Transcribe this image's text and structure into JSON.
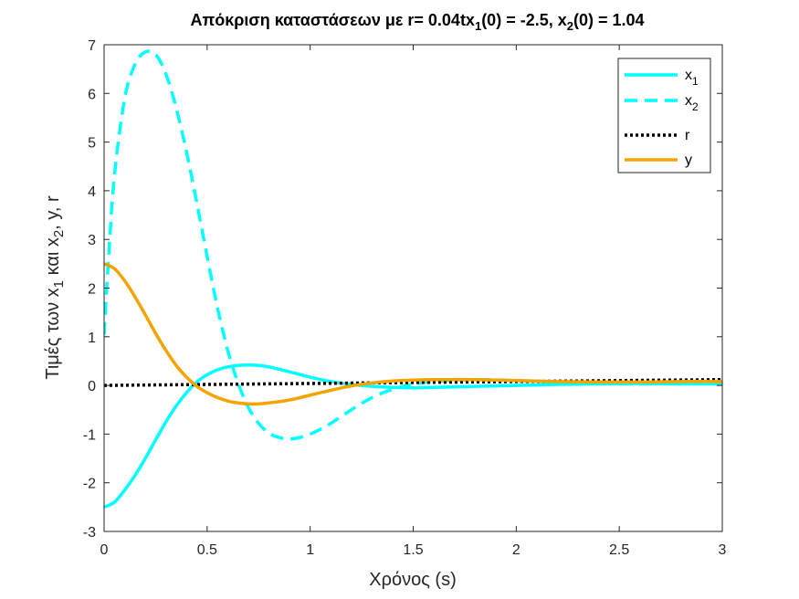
{
  "chart_data": {
    "type": "line",
    "title": {
      "main": "Απόκριση καταστάσεων με r= 0.04tx",
      "sub1": "1",
      "mid": "(0) = -2.5, x",
      "sub2": "2",
      "end": "(0) = 1.04"
    },
    "xlabel": "Χρόνος (s)",
    "ylabel": {
      "a": "Τιμές των x",
      "sub1": "1",
      "b": " και x",
      "sub2": "2",
      "c": ", y, r"
    },
    "xlim": [
      0,
      3
    ],
    "ylim": [
      -3,
      7
    ],
    "x_ticks": [
      0,
      0.5,
      1,
      1.5,
      2,
      2.5,
      3
    ],
    "x_tick_labels": [
      "0",
      "0.5",
      "1",
      "1.5",
      "2",
      "2.5",
      "3"
    ],
    "y_ticks": [
      -3,
      -2,
      -1,
      0,
      1,
      2,
      3,
      4,
      5,
      6,
      7
    ],
    "y_tick_labels": [
      "-3",
      "-2",
      "-1",
      "0",
      "1",
      "2",
      "3",
      "4",
      "5",
      "6",
      "7"
    ],
    "grid": false,
    "legend_position": "top-right",
    "series": [
      {
        "name": "x",
        "name_sub": "1",
        "color": "#00FFFF",
        "style": "solid",
        "x": [
          0,
          0.05,
          0.1,
          0.15,
          0.2,
          0.25,
          0.3,
          0.35,
          0.4,
          0.45,
          0.5,
          0.55,
          0.6,
          0.65,
          0.7,
          0.75,
          0.8,
          0.9,
          1.0,
          1.1,
          1.2,
          1.3,
          1.4,
          1.5,
          1.6,
          1.8,
          2.0,
          2.2,
          2.4,
          2.6,
          2.8,
          3.0
        ],
        "y": [
          -2.5,
          -2.4,
          -2.15,
          -1.85,
          -1.5,
          -1.12,
          -0.75,
          -0.42,
          -0.15,
          0.07,
          0.22,
          0.32,
          0.38,
          0.41,
          0.42,
          0.41,
          0.38,
          0.28,
          0.17,
          0.08,
          0.02,
          -0.02,
          -0.04,
          -0.05,
          -0.04,
          -0.02,
          0.0,
          0.02,
          0.03,
          0.04,
          0.03,
          0.03
        ]
      },
      {
        "name": "x",
        "name_sub": "2",
        "color": "#00FFFF",
        "style": "dashed",
        "x": [
          0,
          0.02,
          0.05,
          0.1,
          0.15,
          0.2,
          0.25,
          0.3,
          0.35,
          0.4,
          0.45,
          0.5,
          0.55,
          0.6,
          0.65,
          0.7,
          0.75,
          0.8,
          0.85,
          0.9,
          0.95,
          1.0,
          1.05,
          1.1,
          1.2,
          1.3,
          1.4,
          1.5,
          1.6,
          1.8,
          2.0,
          2.2,
          2.4,
          2.6,
          2.8,
          3.0
        ],
        "y": [
          1.04,
          2.5,
          4.3,
          5.9,
          6.6,
          6.85,
          6.8,
          6.4,
          5.7,
          4.8,
          3.75,
          2.65,
          1.6,
          0.72,
          0.05,
          -0.45,
          -0.78,
          -0.98,
          -1.07,
          -1.1,
          -1.07,
          -1.0,
          -0.9,
          -0.78,
          -0.5,
          -0.25,
          -0.08,
          0.03,
          0.08,
          0.12,
          0.1,
          0.07,
          0.04,
          0.03,
          0.04,
          0.04
        ]
      },
      {
        "name": "r",
        "color": "#000000",
        "style": "dotted",
        "x": [
          0,
          3
        ],
        "y": [
          0,
          0.12
        ]
      },
      {
        "name": "y",
        "color": "#F5A300",
        "style": "solid",
        "x": [
          0,
          0.05,
          0.1,
          0.15,
          0.2,
          0.25,
          0.3,
          0.35,
          0.4,
          0.45,
          0.5,
          0.55,
          0.6,
          0.65,
          0.7,
          0.75,
          0.8,
          0.9,
          1.0,
          1.1,
          1.2,
          1.3,
          1.4,
          1.5,
          1.6,
          1.8,
          2.0,
          2.2,
          2.4,
          2.6,
          2.8,
          3.0
        ],
        "y": [
          2.5,
          2.4,
          2.15,
          1.82,
          1.45,
          1.07,
          0.72,
          0.41,
          0.17,
          -0.02,
          -0.15,
          -0.25,
          -0.32,
          -0.36,
          -0.38,
          -0.38,
          -0.36,
          -0.3,
          -0.2,
          -0.1,
          -0.01,
          0.05,
          0.09,
          0.11,
          0.12,
          0.12,
          0.1,
          0.08,
          0.07,
          0.07,
          0.08,
          0.08
        ]
      }
    ]
  }
}
